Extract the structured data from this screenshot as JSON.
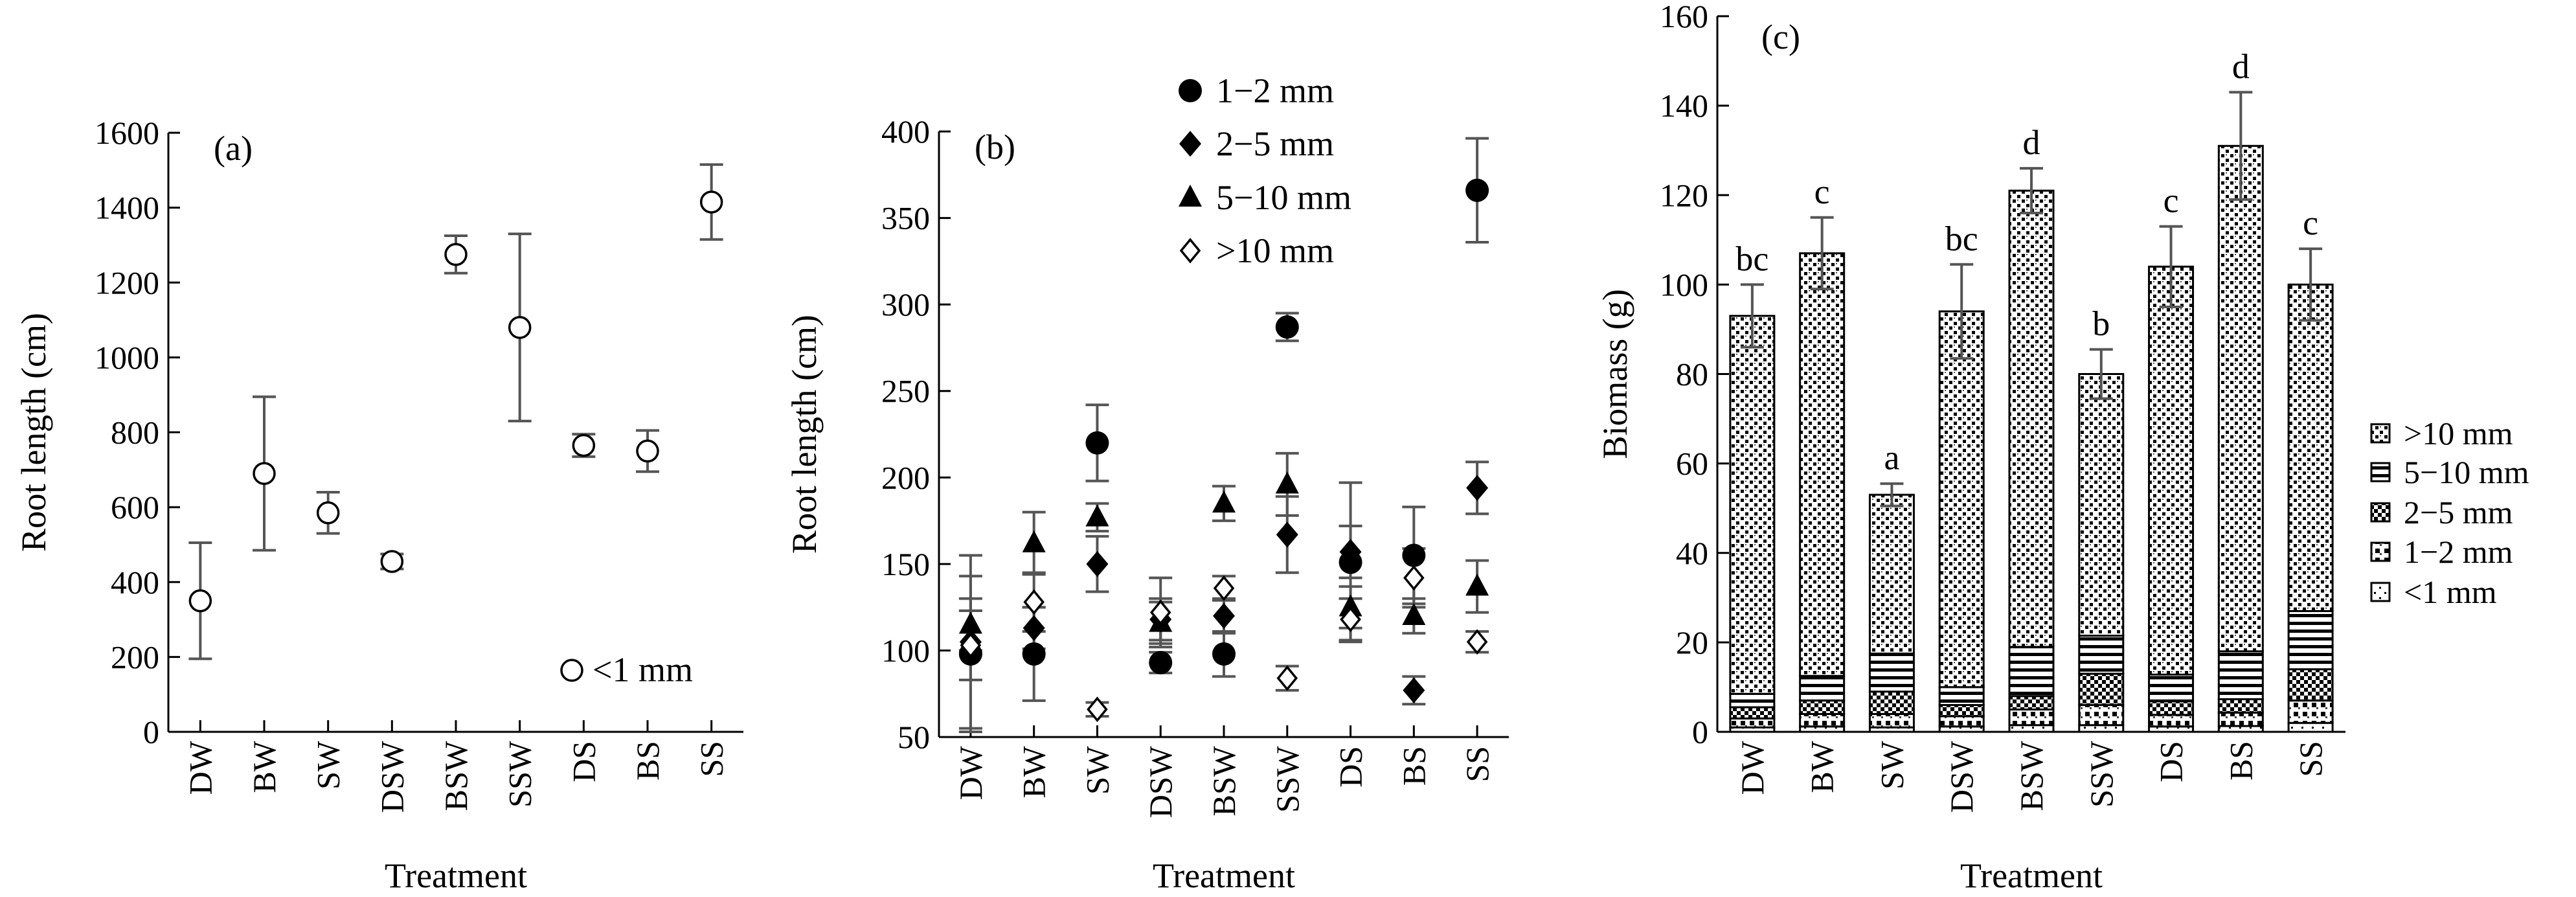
{
  "figure": {
    "categories": [
      "DW",
      "BW",
      "SW",
      "DSW",
      "BSW",
      "SSW",
      "DS",
      "BS",
      "SS"
    ],
    "xlabel": "Treatment"
  },
  "chart_data": [
    {
      "type": "scatter",
      "panel_label": "(a)",
      "xlabel": "Treatment",
      "ylabel": "Root length (cm)",
      "ylim": [
        0,
        1600
      ],
      "yticks": [
        0,
        200,
        400,
        600,
        800,
        1000,
        1200,
        1400,
        1600
      ],
      "categories": [
        "DW",
        "BW",
        "SW",
        "DSW",
        "BSW",
        "SSW",
        "DS",
        "BS",
        "SS"
      ],
      "legend_position": "bottom-right",
      "series": [
        {
          "name": "<1 mm",
          "marker": "open-circle",
          "values": [
            350,
            690,
            585,
            455,
            1275,
            1080,
            765,
            750,
            1415
          ],
          "errors": [
            155,
            205,
            55,
            20,
            50,
            250,
            30,
            55,
            100
          ]
        }
      ]
    },
    {
      "type": "scatter",
      "panel_label": "(b)",
      "xlabel": "Treatment",
      "ylabel": "Root length (cm)",
      "ylim": [
        50,
        400
      ],
      "yticks": [
        50,
        100,
        150,
        200,
        250,
        300,
        350,
        400
      ],
      "categories": [
        "DW",
        "BW",
        "SW",
        "DSW",
        "BSW",
        "SSW",
        "DS",
        "BS",
        "SS"
      ],
      "legend_position": "top-right",
      "series": [
        {
          "name": "1−2 mm",
          "marker": "filled-circle",
          "values": [
            98,
            98,
            220,
            93,
            98,
            287,
            151,
            155,
            366
          ],
          "errors": [
            45,
            27,
            22,
            6,
            13,
            8,
            46,
            28,
            30
          ]
        },
        {
          "name": "2−5 mm",
          "marker": "filled-diamond",
          "values": [
            105,
            113,
            150,
            118,
            120,
            167,
            157,
            77,
            194
          ],
          "errors": [
            50,
            12,
            16,
            12,
            10,
            22,
            15,
            8,
            15
          ]
        },
        {
          "name": "5−10 mm",
          "marker": "filled-triangle",
          "values": [
            115,
            162,
            177,
            116,
            185,
            196,
            125,
            120,
            137
          ],
          "errors": [
            15,
            18,
            8,
            12,
            10,
            18,
            12,
            10,
            15
          ]
        },
        {
          "name": ">10 mm",
          "marker": "open-diamond",
          "values": [
            103,
            128,
            66,
            122,
            136,
            84,
            118,
            142,
            105
          ],
          "errors": [
            20,
            17,
            4,
            20,
            7,
            7,
            12,
            17,
            6
          ]
        }
      ]
    },
    {
      "type": "bar",
      "stacked": true,
      "panel_label": "(c)",
      "xlabel": "Treatment",
      "ylabel": "Biomass (g)",
      "ylim": [
        0,
        160
      ],
      "yticks": [
        0,
        20,
        40,
        60,
        80,
        100,
        120,
        140,
        160
      ],
      "categories": [
        "DW",
        "BW",
        "SW",
        "DSW",
        "BSW",
        "SSW",
        "DS",
        "BS",
        "SS"
      ],
      "legend_position": "right",
      "totals": [
        93,
        107,
        53,
        94,
        121,
        80,
        104,
        131,
        100
      ],
      "errors": [
        7,
        8,
        2.5,
        10.5,
        5,
        5.5,
        9,
        12,
        8
      ],
      "significance_letters": [
        "bc",
        "c",
        "a",
        "bc",
        "d",
        "b",
        "c",
        "d",
        "c"
      ],
      "series": [
        {
          "name": "<1 mm",
          "pattern": "dots-sparse",
          "values": [
            1,
            1.2,
            1,
            1.2,
            1.5,
            1.5,
            1.2,
            1.3,
            2
          ]
        },
        {
          "name": "1−2 mm",
          "pattern": "half-dark",
          "values": [
            2,
            2.8,
            3,
            2.3,
            3.5,
            4.5,
            2.6,
            3,
            5
          ]
        },
        {
          "name": "2−5 mm",
          "pattern": "checker",
          "values": [
            2.5,
            3,
            5,
            2.5,
            3,
            7,
            3,
            3,
            7
          ]
        },
        {
          "name": "5−10 mm",
          "pattern": "hstripes",
          "values": [
            3,
            5.5,
            8.5,
            4,
            11,
            8.5,
            6,
            10.7,
            13
          ]
        },
        {
          "name": ">10 mm",
          "pattern": "dense-dots",
          "values": [
            84.5,
            94.5,
            35.5,
            84,
            102,
            58.5,
            91.2,
            113,
            73
          ]
        }
      ]
    }
  ]
}
